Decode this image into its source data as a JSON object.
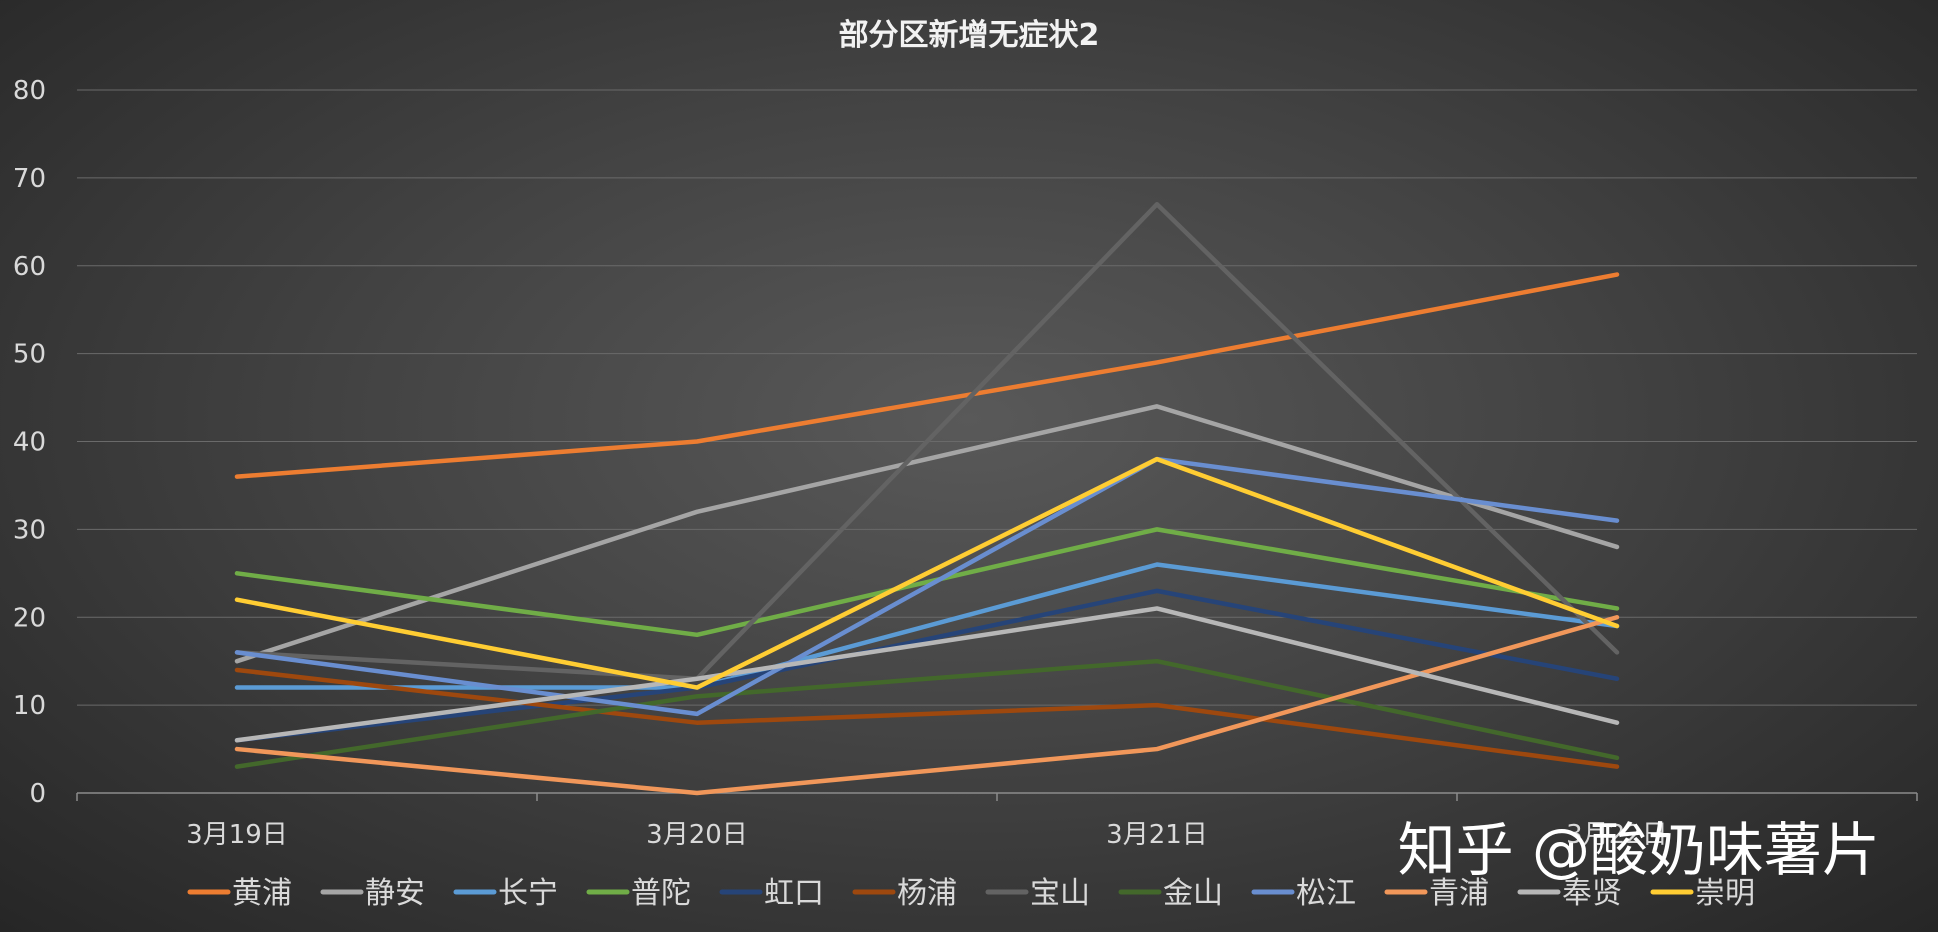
{
  "chart_data": {
    "type": "line",
    "title": "部分区新增无症状2",
    "categories": [
      "3月19日",
      "3月20日",
      "3月21日",
      "3月22日"
    ],
    "ylim": [
      0,
      80
    ],
    "yticks": [
      "0",
      "10",
      "20",
      "30",
      "40",
      "50",
      "60",
      "70",
      "80"
    ],
    "grid": true,
    "legend": "bottom",
    "series": [
      {
        "name": "黄浦",
        "color": "#ED7D31",
        "values": [
          36,
          40,
          49,
          59
        ]
      },
      {
        "name": "静安",
        "color": "#A5A5A5",
        "values": [
          15,
          32,
          44,
          28
        ]
      },
      {
        "name": "长宁",
        "color": "#5B9BD5",
        "values": [
          12,
          12,
          26,
          19
        ]
      },
      {
        "name": "普陀",
        "color": "#70AD47",
        "values": [
          25,
          18,
          30,
          21
        ]
      },
      {
        "name": "虹口",
        "color": "#264478",
        "values": [
          6,
          12,
          23,
          13
        ]
      },
      {
        "name": "杨浦",
        "color": "#9E480E",
        "values": [
          14,
          8,
          10,
          3
        ]
      },
      {
        "name": "宝山",
        "color": "#636363",
        "values": [
          16,
          13,
          67,
          16
        ]
      },
      {
        "name": "金山",
        "color": "#43682B",
        "values": [
          3,
          11,
          15,
          4
        ]
      },
      {
        "name": "松江",
        "color": "#698ED0",
        "values": [
          16,
          9,
          38,
          31
        ]
      },
      {
        "name": "青浦",
        "color": "#F1975A",
        "values": [
          5,
          0,
          5,
          20
        ]
      },
      {
        "name": "奉贤",
        "color": "#B7B7B7",
        "values": [
          6,
          13,
          21,
          8
        ]
      },
      {
        "name": "崇明",
        "color": "#FFCD33",
        "values": [
          22,
          12,
          38,
          19
        ]
      }
    ]
  },
  "watermark": "知乎 @酸奶味薯片"
}
